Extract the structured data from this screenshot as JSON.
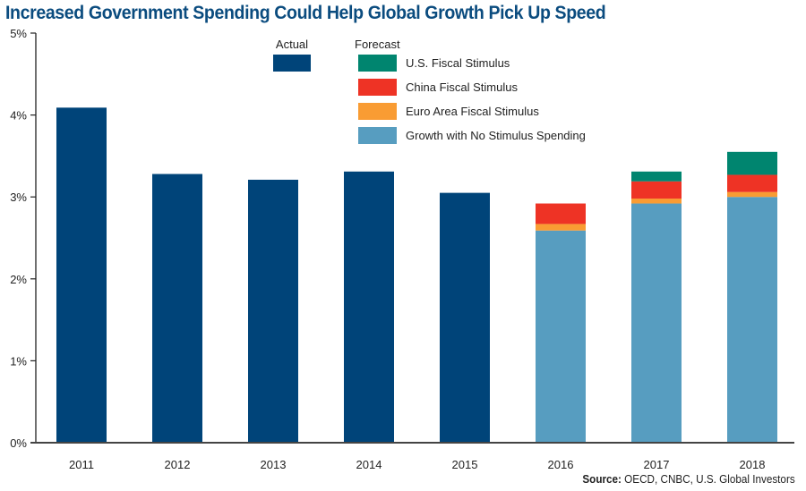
{
  "chart_data": {
    "type": "bar",
    "stacked": true,
    "title": "Increased Government Spending Could Help Global Growth Pick Up Speed",
    "xlabel": "",
    "ylabel": "",
    "ylim": [
      0,
      5
    ],
    "y_ticks": [
      0,
      1,
      2,
      3,
      4,
      5
    ],
    "y_tick_labels": [
      "0%",
      "1%",
      "2%",
      "3%",
      "4%",
      "5%"
    ],
    "categories": [
      "2011",
      "2012",
      "2013",
      "2014",
      "2015",
      "2016",
      "2017",
      "2018"
    ],
    "grid": false,
    "legend": {
      "placement": "top-center",
      "groups": [
        {
          "title": "Actual",
          "entries": [
            "Actual"
          ]
        },
        {
          "title": "Forecast",
          "entries": [
            "U.S. Fiscal Stimulus",
            "China Fiscal Stimulus",
            "Euro Area Fiscal Stimulus",
            "Growth with No Stimulus Spending"
          ]
        }
      ]
    },
    "series": [
      {
        "name": "Actual",
        "color": "#004479",
        "values": [
          4.09,
          3.28,
          3.21,
          3.31,
          3.05,
          null,
          null,
          null
        ]
      },
      {
        "name": "Growth with No Stimulus Spending",
        "color": "#579dc0",
        "values": [
          null,
          null,
          null,
          null,
          null,
          2.59,
          2.92,
          3.0
        ]
      },
      {
        "name": "Euro Area Fiscal Stimulus",
        "color": "#f99c33",
        "values": [
          null,
          null,
          null,
          null,
          null,
          0.08,
          0.06,
          0.06
        ]
      },
      {
        "name": "China Fiscal Stimulus",
        "color": "#ee3325",
        "values": [
          null,
          null,
          null,
          null,
          null,
          0.25,
          0.21,
          0.21
        ]
      },
      {
        "name": "U.S. Fiscal Stimulus",
        "color": "#00856f",
        "values": [
          null,
          null,
          null,
          null,
          null,
          0.0,
          0.12,
          0.28
        ]
      }
    ]
  },
  "legend_text": {
    "actual_title": "Actual",
    "forecast_title": "Forecast",
    "items": [
      "U.S. Fiscal Stimulus",
      "China Fiscal Stimulus",
      "Euro Area Fiscal Stimulus",
      "Growth with No Stimulus Spending"
    ]
  },
  "source": {
    "label": "Source:",
    "text": " OECD, CNBC, U.S. Global Investors"
  }
}
